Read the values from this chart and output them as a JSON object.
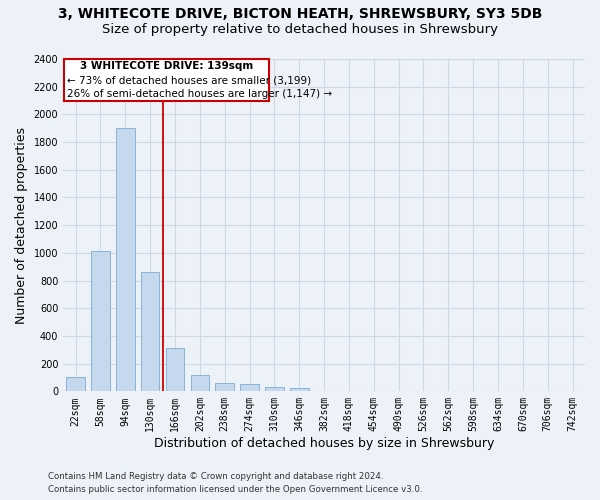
{
  "title_line1": "3, WHITECOTE DRIVE, BICTON HEATH, SHREWSBURY, SY3 5DB",
  "title_line2": "Size of property relative to detached houses in Shrewsbury",
  "xlabel": "Distribution of detached houses by size in Shrewsbury",
  "ylabel": "Number of detached properties",
  "footer_line1": "Contains HM Land Registry data © Crown copyright and database right 2024.",
  "footer_line2": "Contains public sector information licensed under the Open Government Licence v3.0.",
  "categories": [
    "22sqm",
    "58sqm",
    "94sqm",
    "130sqm",
    "166sqm",
    "202sqm",
    "238sqm",
    "274sqm",
    "310sqm",
    "346sqm",
    "382sqm",
    "418sqm",
    "454sqm",
    "490sqm",
    "526sqm",
    "562sqm",
    "598sqm",
    "634sqm",
    "670sqm",
    "706sqm",
    "742sqm"
  ],
  "values": [
    100,
    1010,
    1900,
    860,
    315,
    120,
    58,
    50,
    28,
    22,
    0,
    0,
    0,
    0,
    0,
    0,
    0,
    0,
    0,
    0,
    0
  ],
  "bar_color": "#c5d8ee",
  "bar_edge_color": "#7aadd4",
  "bar_width": 0.75,
  "annotation_text_line1": "3 WHITECOTE DRIVE: 139sqm",
  "annotation_text_line2": "← 73% of detached houses are smaller (3,199)",
  "annotation_text_line3": "26% of semi-detached houses are larger (1,147) →",
  "annotation_box_color": "#ffffff",
  "annotation_box_edge_color": "#cc0000",
  "vline_color": "#cc0000",
  "ylim": [
    0,
    2400
  ],
  "yticks": [
    0,
    200,
    400,
    600,
    800,
    1000,
    1200,
    1400,
    1600,
    1800,
    2000,
    2200,
    2400
  ],
  "grid_color": "#d0d8e8",
  "bg_color": "#edf2f8",
  "plot_bg_color": "#edf2f8",
  "title_fontsize": 10,
  "subtitle_fontsize": 9.5,
  "tick_fontsize": 7,
  "label_fontsize": 9,
  "annotation_fontsize": 7.5,
  "footer_fontsize": 6.2
}
